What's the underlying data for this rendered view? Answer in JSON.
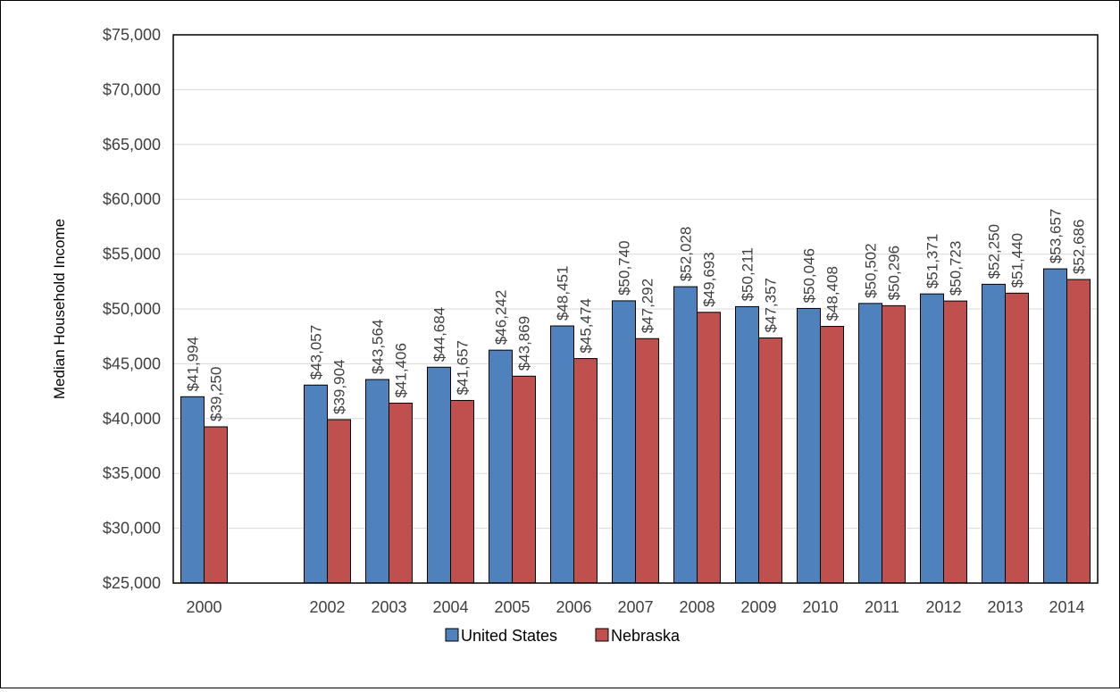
{
  "chart_data": {
    "type": "bar",
    "title": "",
    "xlabel": "",
    "ylabel": "Median Household Income",
    "ylim": [
      25000,
      75000
    ],
    "yticks": [
      25000,
      30000,
      35000,
      40000,
      45000,
      50000,
      55000,
      60000,
      65000,
      70000,
      75000
    ],
    "ytick_labels": [
      "$25,000",
      "$30,000",
      "$35,000",
      "$40,000",
      "$45,000",
      "$50,000",
      "$55,000",
      "$60,000",
      "$65,000",
      "$70,000",
      "$75,000"
    ],
    "categories": [
      "2000",
      "",
      "2002",
      "2003",
      "2004",
      "2005",
      "2006",
      "2007",
      "2008",
      "2009",
      "2010",
      "2011",
      "2012",
      "2013",
      "2014"
    ],
    "series": [
      {
        "name": "United States",
        "color": "#4F81BD",
        "values": [
          41994,
          null,
          43057,
          43564,
          44684,
          46242,
          48451,
          50740,
          52028,
          50211,
          50046,
          50502,
          51371,
          52250,
          53657
        ],
        "labels": [
          "$41,994",
          "",
          "$43,057",
          "$43,564",
          "$44,684",
          "$46,242",
          "$48,451",
          "$50,740",
          "$52,028",
          "$50,211",
          "$50,046",
          "$50,502",
          "$51,371",
          "$52,250",
          "$53,657"
        ]
      },
      {
        "name": "Nebraska",
        "color": "#C0504D",
        "values": [
          39250,
          null,
          39904,
          41406,
          41657,
          43869,
          45474,
          47292,
          49693,
          47357,
          48408,
          50296,
          50723,
          51440,
          52686
        ],
        "labels": [
          "$39,250",
          "",
          "$39,904",
          "$41,406",
          "$41,657",
          "$43,869",
          "$45,474",
          "$47,292",
          "$49,693",
          "$47,357",
          "$48,408",
          "$50,296",
          "$50,723",
          "$51,440",
          "$52,686"
        ]
      }
    ],
    "grid": true,
    "legend_position": "bottom"
  }
}
